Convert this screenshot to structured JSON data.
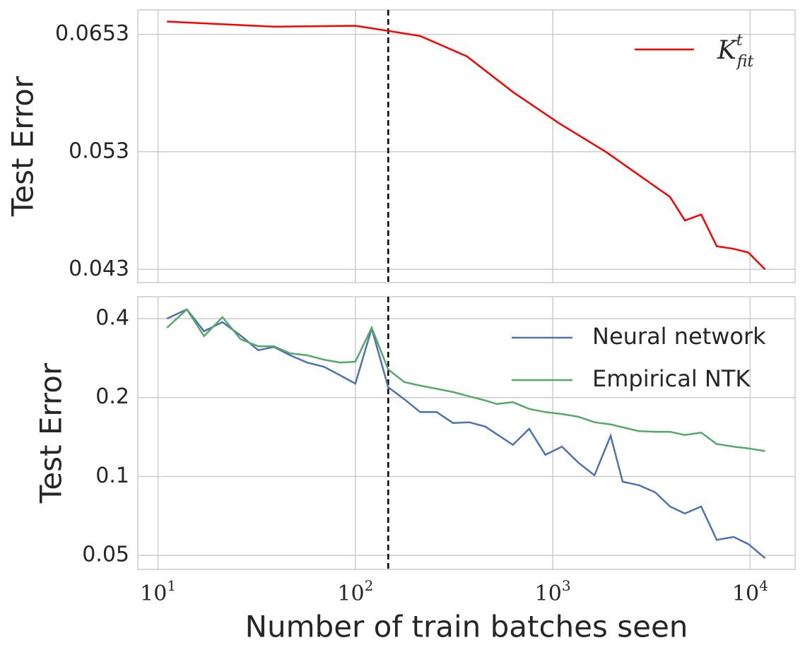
{
  "chart_data": [
    {
      "type": "line",
      "ylabel": "Test Error",
      "xscale": "log",
      "yscale": "log",
      "grid": true,
      "legend": "upper right",
      "xlim": [
        7.9,
        16900
      ],
      "ylim": [
        0.042,
        0.0682
      ],
      "xticks": [
        {
          "value": 10,
          "label": "10",
          "exponent": "1"
        },
        {
          "value": 100,
          "label": "10",
          "exponent": "2"
        },
        {
          "value": 1000,
          "label": "10",
          "exponent": "3"
        },
        {
          "value": 10000,
          "label": "10",
          "exponent": "4"
        }
      ],
      "yticks": [
        0.043,
        0.053,
        0.0653
      ],
      "vline": 146.7,
      "series": [
        {
          "name": "K",
          "name_sup": "t",
          "name_sub": "fit",
          "color": "#ff0000",
          "x": [
            11.1,
            38.6,
            100,
            146.7,
            213,
            367,
            631,
            1086,
            1855,
            3930,
            4670,
            5650,
            6770,
            8250,
            9800,
            11890
          ],
          "values": [
            0.0668,
            0.0662,
            0.0663,
            0.0657,
            0.0651,
            0.0628,
            0.0589,
            0.0557,
            0.053,
            0.0489,
            0.0469,
            0.0474,
            0.0448,
            0.0446,
            0.0443,
            0.043
          ]
        }
      ]
    },
    {
      "type": "line",
      "ylabel": "Test Error",
      "xlabel": "Number of train batches seen",
      "xscale": "log",
      "yscale": "log",
      "grid": true,
      "legend": "upper right",
      "xlim": [
        7.9,
        16900
      ],
      "ylim": [
        0.0442,
        0.485
      ],
      "xticks": [
        {
          "value": 10,
          "label": "10",
          "exponent": "1"
        },
        {
          "value": 100,
          "label": "10",
          "exponent": "2"
        },
        {
          "value": 1000,
          "label": "10",
          "exponent": "3"
        },
        {
          "value": 10000,
          "label": "10",
          "exponent": "4"
        }
      ],
      "yticks": [
        0.05,
        0.1,
        0.2,
        0.4
      ],
      "vline": 146.7,
      "x": [
        11.1,
        14.0,
        17.1,
        21.2,
        26.2,
        32.2,
        38.6,
        46.7,
        56.9,
        69.3,
        83.8,
        100,
        120.9,
        146.7,
        177,
        213,
        258,
        312,
        377,
        455,
        520,
        628,
        759,
        917,
        1113,
        1345,
        1626,
        1965,
        2261,
        2735,
        3302,
        3930,
        4670,
        5650,
        6770,
        8250,
        9800,
        11890
      ],
      "series": [
        {
          "name": "Neural network",
          "color": "#4c72b0",
          "values": [
            0.4,
            0.434,
            0.358,
            0.388,
            0.345,
            0.303,
            0.312,
            0.29,
            0.272,
            0.262,
            0.243,
            0.226,
            0.367,
            0.219,
            0.197,
            0.176,
            0.176,
            0.16,
            0.161,
            0.155,
            0.145,
            0.132,
            0.152,
            0.121,
            0.13,
            0.113,
            0.101,
            0.143,
            0.0955,
            0.0926,
            0.087,
            0.0768,
            0.0722,
            0.0768,
            0.0573,
            0.0588,
            0.0552,
            0.0488
          ]
        },
        {
          "name": "Empirical NTK",
          "color": "#55a868",
          "values": [
            0.369,
            0.434,
            0.343,
            0.405,
            0.334,
            0.314,
            0.314,
            0.295,
            0.29,
            0.279,
            0.272,
            0.274,
            0.369,
            0.256,
            0.229,
            0.222,
            0.216,
            0.21,
            0.202,
            0.195,
            0.189,
            0.192,
            0.181,
            0.176,
            0.173,
            0.169,
            0.161,
            0.158,
            0.154,
            0.149,
            0.148,
            0.148,
            0.144,
            0.147,
            0.133,
            0.13,
            0.128,
            0.125
          ]
        }
      ]
    }
  ]
}
